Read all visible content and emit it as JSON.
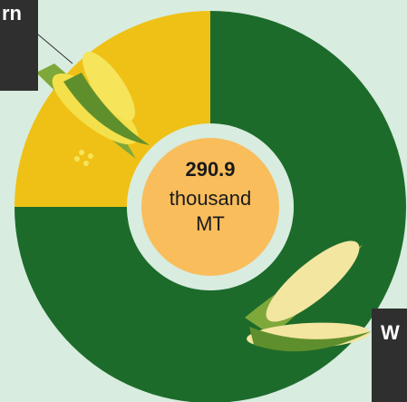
{
  "chart_data": {
    "type": "donut",
    "categories": [
      "W",
      "rn"
    ],
    "values": [
      75,
      25
    ],
    "colors": [
      "#1d6b2b",
      "#efc116"
    ],
    "center_value": "290.9",
    "center_unit_1": "thousand",
    "center_unit_2": "MT"
  }
}
